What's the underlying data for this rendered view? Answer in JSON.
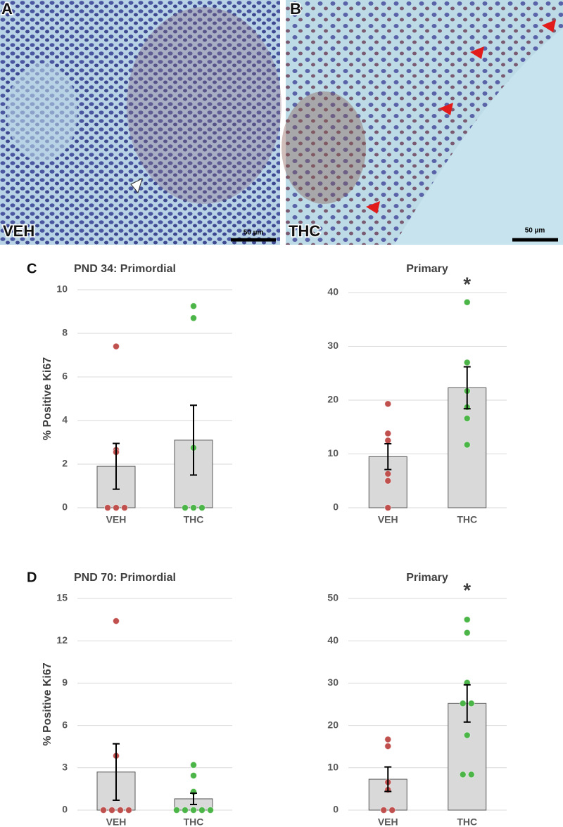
{
  "images": [
    {
      "label": "A",
      "caption": "VEH",
      "scale_bar": "50 µm"
    },
    {
      "label": "B",
      "caption": "THC",
      "scale_bar": "50 µm"
    }
  ],
  "panel_labels": [
    "C",
    "D"
  ],
  "chart_data": [
    {
      "type": "bar",
      "title": "PND 34: Primordial",
      "ylabel": "% Positive Ki67",
      "categories": [
        "VEH",
        "THC"
      ],
      "values": [
        1.9,
        3.1
      ],
      "errors": [
        1.05,
        1.6
      ],
      "points": [
        [
          7.4,
          2.65,
          2.55,
          0,
          0,
          0
        ],
        [
          9.25,
          8.7,
          2.75,
          0,
          0,
          0
        ]
      ],
      "point_colors": [
        "#c0504d",
        "#4cb548"
      ],
      "color": "#d9d9d9",
      "ylim": [
        0,
        10
      ],
      "yticks": [
        0,
        2,
        4,
        6,
        8,
        10
      ],
      "grid": true,
      "annotations": []
    },
    {
      "type": "bar",
      "title": "Primary",
      "categories": [
        "VEH",
        "THC"
      ],
      "values": [
        9.5,
        22.3
      ],
      "errors": [
        2.4,
        3.9
      ],
      "points": [
        [
          19.3,
          13.8,
          12.5,
          6.3,
          5.0,
          0
        ],
        [
          38.2,
          27.0,
          21.7,
          18.7,
          16.6,
          11.7
        ]
      ],
      "point_colors": [
        "#c0504d",
        "#4cb548"
      ],
      "color": "#d9d9d9",
      "ylim": [
        0,
        40
      ],
      "yticks": [
        0,
        10,
        20,
        30,
        40
      ],
      "grid": true,
      "annotations": [
        {
          "text": "*",
          "category": 1
        }
      ]
    },
    {
      "type": "bar",
      "title": "PND 70: Primordial",
      "ylabel": "% Positive Ki67",
      "categories": [
        "VEH",
        "THC"
      ],
      "values": [
        2.7,
        0.8
      ],
      "errors": [
        2.0,
        0.4
      ],
      "points": [
        [
          13.4,
          3.85,
          0,
          0,
          0,
          0
        ],
        [
          3.2,
          2.45,
          1.3,
          0,
          0,
          0,
          0,
          0
        ]
      ],
      "point_colors": [
        "#c0504d",
        "#4cb548"
      ],
      "color": "#d9d9d9",
      "ylim": [
        0,
        15
      ],
      "yticks": [
        0,
        3,
        6,
        9,
        12,
        15
      ],
      "grid": true,
      "annotations": []
    },
    {
      "type": "bar",
      "title": "Primary",
      "categories": [
        "VEH",
        "THC"
      ],
      "values": [
        7.3,
        25.2
      ],
      "errors": [
        2.9,
        4.4
      ],
      "points": [
        [
          16.7,
          15.1,
          6.6,
          4.8,
          0,
          0
        ],
        [
          45,
          41.9,
          30.1,
          25.2,
          25.2,
          17.7,
          8.4,
          8.4
        ]
      ],
      "point_colors": [
        "#c0504d",
        "#4cb548"
      ],
      "color": "#d9d9d9",
      "ylim": [
        0,
        50
      ],
      "yticks": [
        0,
        10,
        20,
        30,
        40,
        50
      ],
      "grid": true,
      "annotations": [
        {
          "text": "*",
          "category": 1
        }
      ]
    }
  ]
}
